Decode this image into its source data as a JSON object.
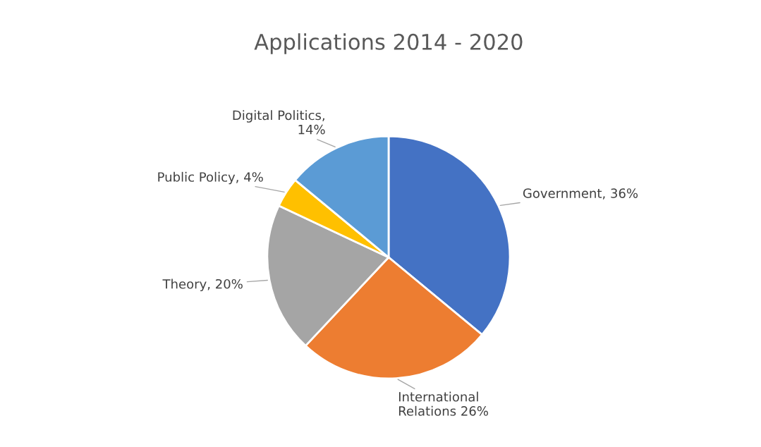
{
  "chart_data": {
    "type": "pie",
    "title": "Applications 2014 - 2020",
    "categories": [
      "Government, 36%",
      "International\nRelations 26%",
      "Theory, 20%",
      "Public Policy, 4%",
      "Digital Politics,\n14%"
    ],
    "values": [
      36,
      26,
      20,
      4,
      14
    ],
    "colors": [
      "#4472c4",
      "#ed7d31",
      "#a5a5a5",
      "#ffc000",
      "#5b9bd5"
    ],
    "legend": false
  }
}
